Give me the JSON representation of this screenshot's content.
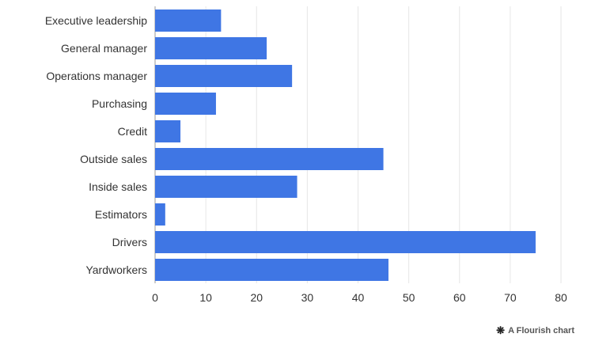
{
  "chart_data": {
    "type": "bar",
    "orientation": "horizontal",
    "categories": [
      "Executive leadership",
      "General manager",
      "Operations manager",
      "Purchasing",
      "Credit",
      "Outside sales",
      "Inside sales",
      "Estimators",
      "Drivers",
      "Yardworkers"
    ],
    "values": [
      13,
      22,
      27,
      12,
      5,
      45,
      28,
      2,
      75,
      46
    ],
    "xlim": [
      0,
      80
    ],
    "xticks": [
      0,
      10,
      20,
      30,
      40,
      50,
      60,
      70,
      80
    ],
    "grid": "vertical",
    "bar_color": "#3f76e4"
  },
  "footer": {
    "credit_text": "A Flourish chart",
    "credit_icon": "asterisk-icon"
  }
}
